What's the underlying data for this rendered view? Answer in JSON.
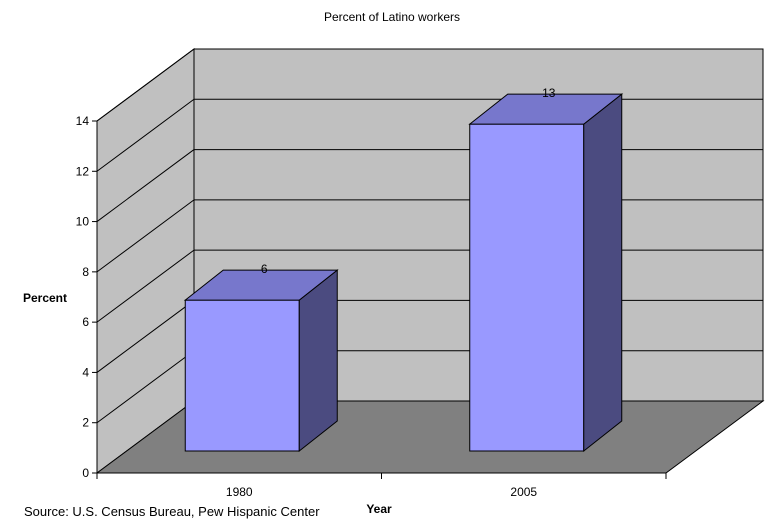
{
  "chart_data": {
    "type": "bar",
    "title": "Percent of Latino workers",
    "xlabel": "Year",
    "ylabel": "Percent",
    "categories": [
      "1980",
      "2005"
    ],
    "values": [
      6,
      13
    ],
    "data_labels": [
      "6",
      "13"
    ],
    "ylim": [
      0,
      14
    ],
    "yticks": [
      0,
      2,
      4,
      6,
      8,
      10,
      12,
      14
    ],
    "grid": true,
    "legend": "none",
    "style": "3d-column",
    "colors": {
      "bar_front": "#9999ff",
      "bar_top": "#7777cc",
      "bar_side": "#4b4b80",
      "walls": "#c0c0c0",
      "floor": "#808080"
    }
  },
  "footer": {
    "source": "Source: U.S. Census Bureau, Pew Hispanic Center"
  }
}
